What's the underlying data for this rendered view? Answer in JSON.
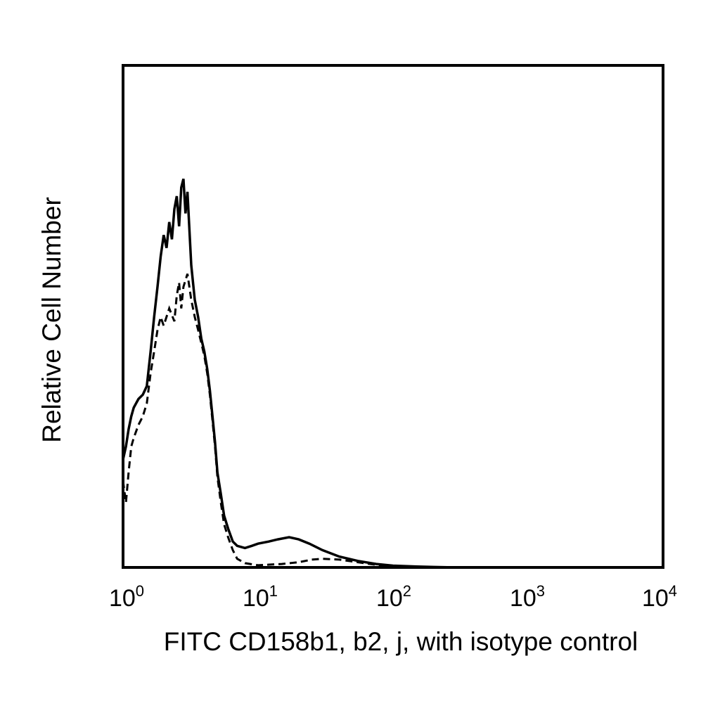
{
  "chart_data": {
    "type": "line",
    "x_scale": "log",
    "xlim": [
      1,
      10000
    ],
    "ylim": [
      0,
      1
    ],
    "grid": false,
    "legend": "none",
    "xlabel": "FITC CD158b1, b2, j, with isotype control",
    "ylabel": "Relative Cell Number",
    "x_ticks": [
      {
        "base": "10",
        "exp": "0",
        "value": 1
      },
      {
        "base": "10",
        "exp": "1",
        "value": 10
      },
      {
        "base": "10",
        "exp": "2",
        "value": 100
      },
      {
        "base": "10",
        "exp": "3",
        "value": 1000
      },
      {
        "base": "10",
        "exp": "4",
        "value": 10000
      }
    ],
    "series": [
      {
        "style": "solid",
        "color": "#000000",
        "points": [
          [
            1.0,
            0.25
          ],
          [
            1.05,
            0.28
          ],
          [
            1.1,
            0.32
          ],
          [
            1.15,
            0.35
          ],
          [
            1.2,
            0.37
          ],
          [
            1.3,
            0.39
          ],
          [
            1.4,
            0.4
          ],
          [
            1.5,
            0.42
          ],
          [
            1.6,
            0.5
          ],
          [
            1.7,
            0.58
          ],
          [
            1.8,
            0.65
          ],
          [
            1.9,
            0.72
          ],
          [
            2.0,
            0.77
          ],
          [
            2.1,
            0.74
          ],
          [
            2.2,
            0.8
          ],
          [
            2.3,
            0.76
          ],
          [
            2.4,
            0.83
          ],
          [
            2.5,
            0.86
          ],
          [
            2.6,
            0.79
          ],
          [
            2.7,
            0.88
          ],
          [
            2.8,
            0.9
          ],
          [
            2.9,
            0.82
          ],
          [
            3.0,
            0.87
          ],
          [
            3.2,
            0.7
          ],
          [
            3.4,
            0.62
          ],
          [
            3.6,
            0.58
          ],
          [
            3.8,
            0.53
          ],
          [
            4.0,
            0.5
          ],
          [
            4.2,
            0.46
          ],
          [
            4.4,
            0.41
          ],
          [
            4.6,
            0.35
          ],
          [
            4.8,
            0.29
          ],
          [
            5.0,
            0.22
          ],
          [
            5.3,
            0.17
          ],
          [
            5.6,
            0.12
          ],
          [
            6.0,
            0.09
          ],
          [
            6.5,
            0.06
          ],
          [
            7.0,
            0.05
          ],
          [
            8.0,
            0.045
          ],
          [
            9.0,
            0.05
          ],
          [
            10.0,
            0.055
          ],
          [
            12.0,
            0.06
          ],
          [
            14.0,
            0.065
          ],
          [
            17.0,
            0.07
          ],
          [
            20.0,
            0.065
          ],
          [
            24.0,
            0.055
          ],
          [
            30.0,
            0.04
          ],
          [
            40.0,
            0.025
          ],
          [
            55.0,
            0.015
          ],
          [
            75.0,
            0.008
          ],
          [
            100.0,
            0.004
          ],
          [
            150.0,
            0.002
          ],
          [
            200.0,
            0.001
          ],
          [
            300.0,
            0.0
          ]
        ]
      },
      {
        "style": "dashed",
        "color": "#000000",
        "points": [
          [
            1.0,
            0.2
          ],
          [
            1.05,
            0.15
          ],
          [
            1.1,
            0.22
          ],
          [
            1.15,
            0.28
          ],
          [
            1.2,
            0.3
          ],
          [
            1.3,
            0.33
          ],
          [
            1.4,
            0.35
          ],
          [
            1.5,
            0.38
          ],
          [
            1.6,
            0.45
          ],
          [
            1.7,
            0.5
          ],
          [
            1.8,
            0.55
          ],
          [
            1.9,
            0.58
          ],
          [
            2.0,
            0.56
          ],
          [
            2.2,
            0.6
          ],
          [
            2.4,
            0.57
          ],
          [
            2.5,
            0.63
          ],
          [
            2.6,
            0.66
          ],
          [
            2.7,
            0.6
          ],
          [
            2.8,
            0.65
          ],
          [
            3.0,
            0.68
          ],
          [
            3.2,
            0.62
          ],
          [
            3.4,
            0.58
          ],
          [
            3.6,
            0.55
          ],
          [
            3.8,
            0.52
          ],
          [
            4.0,
            0.49
          ],
          [
            4.2,
            0.45
          ],
          [
            4.4,
            0.4
          ],
          [
            4.6,
            0.34
          ],
          [
            4.8,
            0.28
          ],
          [
            5.0,
            0.21
          ],
          [
            5.3,
            0.15
          ],
          [
            5.6,
            0.1
          ],
          [
            6.0,
            0.07
          ],
          [
            6.5,
            0.04
          ],
          [
            7.0,
            0.02
          ],
          [
            8.0,
            0.01
          ],
          [
            10.0,
            0.005
          ],
          [
            15.0,
            0.008
          ],
          [
            20.0,
            0.012
          ],
          [
            25.0,
            0.018
          ],
          [
            30.0,
            0.02
          ],
          [
            40.0,
            0.018
          ],
          [
            55.0,
            0.012
          ],
          [
            75.0,
            0.006
          ],
          [
            100.0,
            0.003
          ],
          [
            150.0,
            0.001
          ],
          [
            200.0,
            0.0
          ]
        ]
      }
    ]
  }
}
